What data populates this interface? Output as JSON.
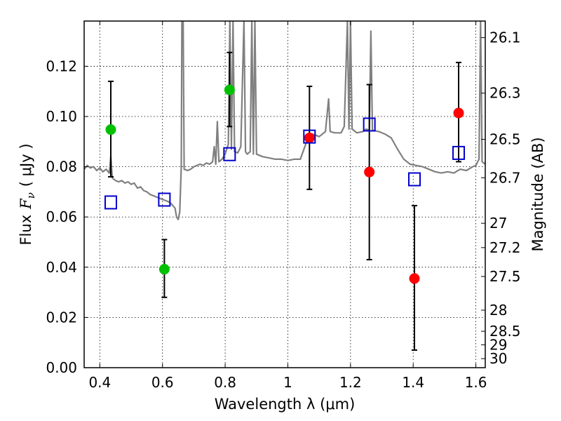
{
  "chart_data": {
    "type": "scatter",
    "xlabel": "Wavelength  λ (μm)",
    "ylabel_parts": [
      "Flux",
      "F",
      "ν",
      "( μJy )"
    ],
    "y2label": "Magnitude (AB)",
    "xlim": [
      0.35,
      1.63
    ],
    "ylim": [
      0.0,
      0.138
    ],
    "x_ticks": [
      0.4,
      0.6,
      0.8,
      1.0,
      1.2,
      1.4,
      1.6
    ],
    "x_tick_labels": [
      "0.4",
      "0.6",
      "0.8",
      "1",
      "1.2",
      "1.4",
      "1.6"
    ],
    "y_ticks": [
      0.0,
      0.02,
      0.04,
      0.06,
      0.08,
      0.1,
      0.12
    ],
    "y_tick_labels": [
      "0.00",
      "0.02",
      "0.04",
      "0.06",
      "0.08",
      "0.10",
      "0.12"
    ],
    "y2_ticks": [
      {
        "label": "26.1",
        "flux": 0.1314
      },
      {
        "label": "26.3",
        "flux": 0.1093
      },
      {
        "label": "26.5",
        "flux": 0.0909
      },
      {
        "label": "26.7",
        "flux": 0.0756
      },
      {
        "label": "27",
        "flux": 0.0575
      },
      {
        "label": "27.2",
        "flux": 0.0478
      },
      {
        "label": "27.5",
        "flux": 0.0363
      },
      {
        "label": "28",
        "flux": 0.0229
      },
      {
        "label": "28.5",
        "flux": 0.0145
      },
      {
        "label": "29",
        "flux": 0.0091
      },
      {
        "label": "30",
        "flux": 0.0036
      }
    ],
    "grid": true,
    "colors": {
      "model": "#808080",
      "green": "#00c000",
      "red": "#ff0000",
      "square": "#0000cc",
      "errorbar": "#000000"
    },
    "series": [
      {
        "marker": "green-circle",
        "points": [
          {
            "x": 0.435,
            "y": 0.0948,
            "err": [
              0.076,
              0.114
            ]
          },
          {
            "x": 0.606,
            "y": 0.0392,
            "err": [
              0.028,
              0.051
            ]
          },
          {
            "x": 0.814,
            "y": 0.1106,
            "err": [
              0.096,
              0.1255
            ]
          }
        ]
      },
      {
        "marker": "red-circle",
        "points": [
          {
            "x": 1.069,
            "y": 0.0915,
            "err": [
              0.071,
              0.112
            ]
          },
          {
            "x": 1.26,
            "y": 0.0779,
            "err": [
              0.043,
              0.1127
            ]
          },
          {
            "x": 1.404,
            "y": 0.0355,
            "err": [
              0.007,
              0.0645
            ]
          },
          {
            "x": 1.545,
            "y": 0.1014,
            "err": [
              0.082,
              0.1215
            ]
          }
        ]
      },
      {
        "marker": "blue-square",
        "points": [
          {
            "x": 0.435,
            "y": 0.0658
          },
          {
            "x": 0.606,
            "y": 0.0669
          },
          {
            "x": 0.814,
            "y": 0.085
          },
          {
            "x": 1.069,
            "y": 0.092
          },
          {
            "x": 1.26,
            "y": 0.0968
          },
          {
            "x": 1.404,
            "y": 0.075
          },
          {
            "x": 1.545,
            "y": 0.0855
          }
        ]
      }
    ],
    "model_spectrum": [
      [
        0.35,
        0.079
      ],
      [
        0.36,
        0.0805
      ],
      [
        0.37,
        0.0795
      ],
      [
        0.38,
        0.08
      ],
      [
        0.39,
        0.0785
      ],
      [
        0.4,
        0.0795
      ],
      [
        0.41,
        0.078
      ],
      [
        0.42,
        0.079
      ],
      [
        0.43,
        0.0775
      ],
      [
        0.435,
        0.084
      ],
      [
        0.44,
        0.0755
      ],
      [
        0.45,
        0.0745
      ],
      [
        0.46,
        0.074
      ],
      [
        0.47,
        0.0745
      ],
      [
        0.48,
        0.0735
      ],
      [
        0.49,
        0.074
      ],
      [
        0.5,
        0.073
      ],
      [
        0.51,
        0.0735
      ],
      [
        0.52,
        0.0715
      ],
      [
        0.53,
        0.072
      ],
      [
        0.54,
        0.0705
      ],
      [
        0.55,
        0.07
      ],
      [
        0.56,
        0.069
      ],
      [
        0.57,
        0.0685
      ],
      [
        0.58,
        0.068
      ],
      [
        0.59,
        0.0675
      ],
      [
        0.6,
        0.067
      ],
      [
        0.61,
        0.0665
      ],
      [
        0.62,
        0.066
      ],
      [
        0.63,
        0.065
      ],
      [
        0.64,
        0.0635
      ],
      [
        0.645,
        0.06
      ],
      [
        0.65,
        0.059
      ],
      [
        0.655,
        0.062
      ],
      [
        0.66,
        0.08
      ],
      [
        0.662,
        0.138
      ],
      [
        0.666,
        0.138
      ],
      [
        0.669,
        0.079
      ],
      [
        0.68,
        0.0785
      ],
      [
        0.69,
        0.079
      ],
      [
        0.7,
        0.08
      ],
      [
        0.71,
        0.0805
      ],
      [
        0.72,
        0.081
      ],
      [
        0.73,
        0.0805
      ],
      [
        0.74,
        0.0815
      ],
      [
        0.75,
        0.081
      ],
      [
        0.76,
        0.082
      ],
      [
        0.765,
        0.088
      ],
      [
        0.77,
        0.081
      ],
      [
        0.775,
        0.098
      ],
      [
        0.78,
        0.082
      ],
      [
        0.79,
        0.083
      ],
      [
        0.8,
        0.085
      ],
      [
        0.81,
        0.089
      ],
      [
        0.815,
        0.138
      ],
      [
        0.82,
        0.087
      ],
      [
        0.825,
        0.138
      ],
      [
        0.83,
        0.086
      ],
      [
        0.84,
        0.0855
      ],
      [
        0.85,
        0.088
      ],
      [
        0.86,
        0.138
      ],
      [
        0.865,
        0.086
      ],
      [
        0.87,
        0.085
      ],
      [
        0.88,
        0.086
      ],
      [
        0.885,
        0.138
      ],
      [
        0.89,
        0.085
      ],
      [
        0.895,
        0.138
      ],
      [
        0.9,
        0.085
      ],
      [
        0.92,
        0.084
      ],
      [
        0.94,
        0.0835
      ],
      [
        0.96,
        0.083
      ],
      [
        0.98,
        0.083
      ],
      [
        1.0,
        0.0825
      ],
      [
        1.02,
        0.083
      ],
      [
        1.04,
        0.083
      ],
      [
        1.06,
        0.09
      ],
      [
        1.08,
        0.093
      ],
      [
        1.1,
        0.092
      ],
      [
        1.12,
        0.094
      ],
      [
        1.13,
        0.107
      ],
      [
        1.135,
        0.094
      ],
      [
        1.15,
        0.0935
      ],
      [
        1.17,
        0.0935
      ],
      [
        1.18,
        0.096
      ],
      [
        1.19,
        0.138
      ],
      [
        1.195,
        0.095
      ],
      [
        1.2,
        0.138
      ],
      [
        1.205,
        0.095
      ],
      [
        1.22,
        0.0935
      ],
      [
        1.24,
        0.094
      ],
      [
        1.25,
        0.095
      ],
      [
        1.26,
        0.0945
      ],
      [
        1.265,
        0.134
      ],
      [
        1.27,
        0.0945
      ],
      [
        1.29,
        0.094
      ],
      [
        1.31,
        0.093
      ],
      [
        1.33,
        0.0915
      ],
      [
        1.35,
        0.087
      ],
      [
        1.37,
        0.083
      ],
      [
        1.39,
        0.081
      ],
      [
        1.41,
        0.0805
      ],
      [
        1.43,
        0.08
      ],
      [
        1.45,
        0.079
      ],
      [
        1.47,
        0.078
      ],
      [
        1.49,
        0.0775
      ],
      [
        1.51,
        0.078
      ],
      [
        1.53,
        0.0775
      ],
      [
        1.55,
        0.079
      ],
      [
        1.57,
        0.0785
      ],
      [
        1.59,
        0.08
      ],
      [
        1.6,
        0.0805
      ],
      [
        1.61,
        0.083
      ],
      [
        1.615,
        0.138
      ],
      [
        1.62,
        0.082
      ],
      [
        1.63,
        0.081
      ]
    ]
  }
}
